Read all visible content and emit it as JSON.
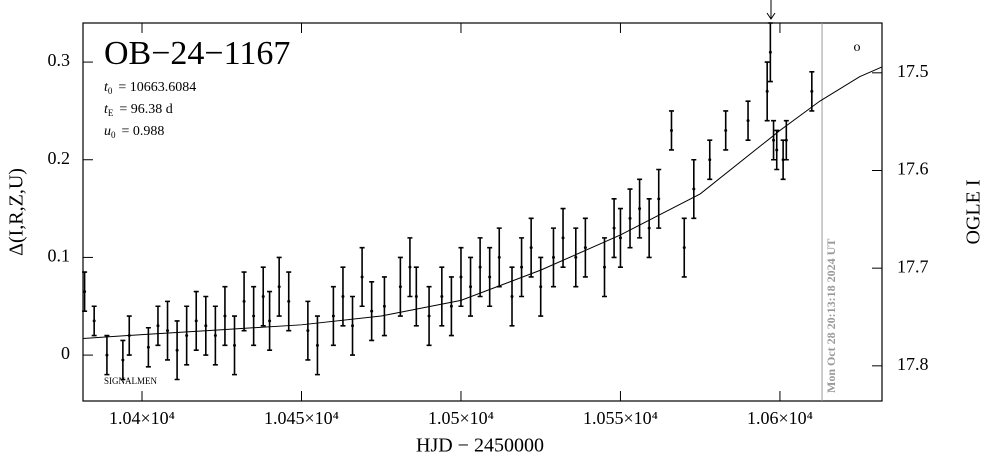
{
  "chart_data": {
    "type": "scatter",
    "title": "OB−24−1167",
    "parameters": [
      {
        "symbol": "t",
        "subscript": "0",
        "text": "= 10663.6084"
      },
      {
        "symbol": "t",
        "subscript": "E",
        "text": "= 96.38 d"
      },
      {
        "symbol": "u",
        "subscript": "0",
        "text": "= 0.988"
      }
    ],
    "x_label": "HJD − 2450000",
    "y_label": "Δ(I,R,Z,U)",
    "y2_label": "OGLE I",
    "footer_text": "SIGNALMEN",
    "timestamp": "Mon Oct 28 20:13:18 2024 UT",
    "timestamp_x": 10613.2,
    "arrow_x": 10597.2,
    "corner_symbol": "o",
    "color": "#000000",
    "xlim": [
      10381.5,
      10632
    ],
    "ylim": [
      -0.047,
      0.34
    ],
    "y2lim": [
      17.836,
      17.449
    ],
    "xticks": [
      {
        "value": 10400,
        "label": "1.04×10⁴"
      },
      {
        "value": 10450,
        "label": "1.045×10⁴"
      },
      {
        "value": 10500,
        "label": "1.05×10⁴"
      },
      {
        "value": 10550,
        "label": "1.055×10⁴"
      },
      {
        "value": 10600,
        "label": "1.06×10⁴"
      }
    ],
    "yticks": [
      0,
      0.1,
      0.2,
      0.3
    ],
    "y2ticks": [
      17.5,
      17.6,
      17.7,
      17.8
    ],
    "x": [
      10382,
      10385,
      10389,
      10394,
      10396,
      10402,
      10405,
      10408,
      10411,
      10414,
      10417,
      10420,
      10423,
      10426,
      10429,
      10432,
      10435,
      10438,
      10440,
      10443,
      10446,
      10452,
      10455,
      10460,
      10463,
      10466,
      10469,
      10472,
      10476,
      10481,
      10484,
      10486,
      10490,
      10494,
      10497,
      10500,
      10503,
      10506,
      10509,
      10512,
      10516,
      10519,
      10522,
      10525,
      10529,
      10532,
      10536,
      10539,
      10545,
      10548,
      10550,
      10553,
      10556,
      10559,
      10562,
      10566,
      10570,
      10573,
      10578,
      10583,
      10590,
      10596,
      10597,
      10598,
      10599,
      10601,
      10602,
      10610
    ],
    "values": [
      0.065,
      0.035,
      0.0,
      -0.005,
      0.02,
      0.008,
      0.03,
      0.025,
      0.005,
      0.02,
      0.035,
      0.03,
      0.02,
      0.04,
      0.01,
      0.055,
      0.04,
      0.06,
      0.035,
      0.07,
      0.055,
      0.025,
      0.01,
      0.04,
      0.06,
      0.03,
      0.08,
      0.045,
      0.05,
      0.07,
      0.09,
      0.06,
      0.04,
      0.06,
      0.05,
      0.08,
      0.07,
      0.09,
      0.08,
      0.1,
      0.06,
      0.09,
      0.11,
      0.07,
      0.1,
      0.12,
      0.1,
      0.11,
      0.09,
      0.13,
      0.12,
      0.14,
      0.15,
      0.13,
      0.16,
      0.23,
      0.11,
      0.17,
      0.2,
      0.23,
      0.24,
      0.27,
      0.31,
      0.22,
      0.21,
      0.2,
      0.22,
      0.27
    ],
    "errors": [
      0.02,
      0.015,
      0.02,
      0.02,
      0.02,
      0.02,
      0.02,
      0.03,
      0.03,
      0.03,
      0.03,
      0.03,
      0.03,
      0.03,
      0.03,
      0.03,
      0.03,
      0.03,
      0.03,
      0.03,
      0.03,
      0.03,
      0.03,
      0.03,
      0.03,
      0.03,
      0.03,
      0.03,
      0.03,
      0.03,
      0.03,
      0.03,
      0.03,
      0.03,
      0.03,
      0.03,
      0.03,
      0.03,
      0.03,
      0.03,
      0.03,
      0.03,
      0.03,
      0.03,
      0.03,
      0.03,
      0.03,
      0.03,
      0.03,
      0.03,
      0.03,
      0.03,
      0.03,
      0.03,
      0.03,
      0.02,
      0.03,
      0.03,
      0.02,
      0.02,
      0.02,
      0.03,
      0.03,
      0.02,
      0.02,
      0.02,
      0.02,
      0.02
    ],
    "model": {
      "x": [
        10381.5,
        10400,
        10425,
        10450,
        10475,
        10500,
        10525,
        10550,
        10575,
        10600,
        10612.5,
        10625,
        10632
      ],
      "values": [
        0.017,
        0.021,
        0.026,
        0.031,
        0.04,
        0.056,
        0.087,
        0.123,
        0.165,
        0.23,
        0.26,
        0.285,
        0.295
      ]
    }
  }
}
